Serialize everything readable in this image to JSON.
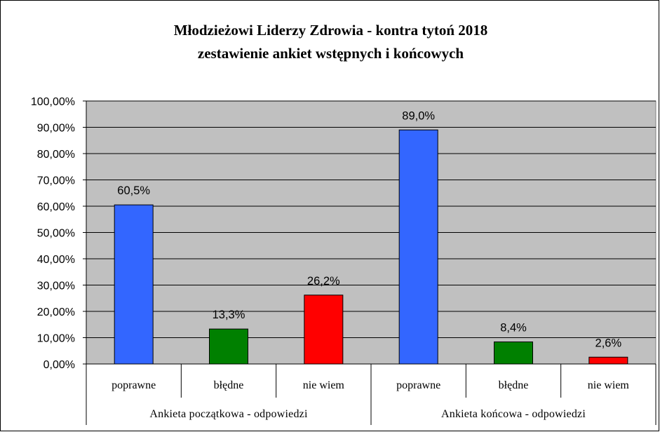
{
  "chart_data": {
    "type": "bar",
    "title": "Młodzieżowi Liderzy Zdrowia - kontra tytoń 2018",
    "subtitle": "zestawienie ankiet wstępnych i końcowych",
    "groups": [
      "Ankieta początkowa - odpowiedzi",
      "Ankieta końcowa - odpowiedzi"
    ],
    "categories": [
      "poprawne",
      "błędne",
      "nie wiem",
      "poprawne",
      "błędne",
      "nie wiem"
    ],
    "values": [
      60.5,
      13.3,
      26.2,
      89.0,
      8.4,
      2.6
    ],
    "data_labels": [
      "60,5%",
      "13,3%",
      "26,2%",
      "89,0%",
      "8,4%",
      "2,6%"
    ],
    "colors": [
      "#3366ff",
      "#008000",
      "#ff0000",
      "#3366ff",
      "#008000",
      "#ff0000"
    ],
    "y_ticks": [
      "0,00%",
      "10,00%",
      "20,00%",
      "30,00%",
      "40,00%",
      "50,00%",
      "60,00%",
      "70,00%",
      "80,00%",
      "90,00%",
      "100,00%"
    ],
    "ylim": [
      0,
      100
    ],
    "grid": true,
    "plot_background": "#c0c0c0",
    "legend": "none"
  }
}
